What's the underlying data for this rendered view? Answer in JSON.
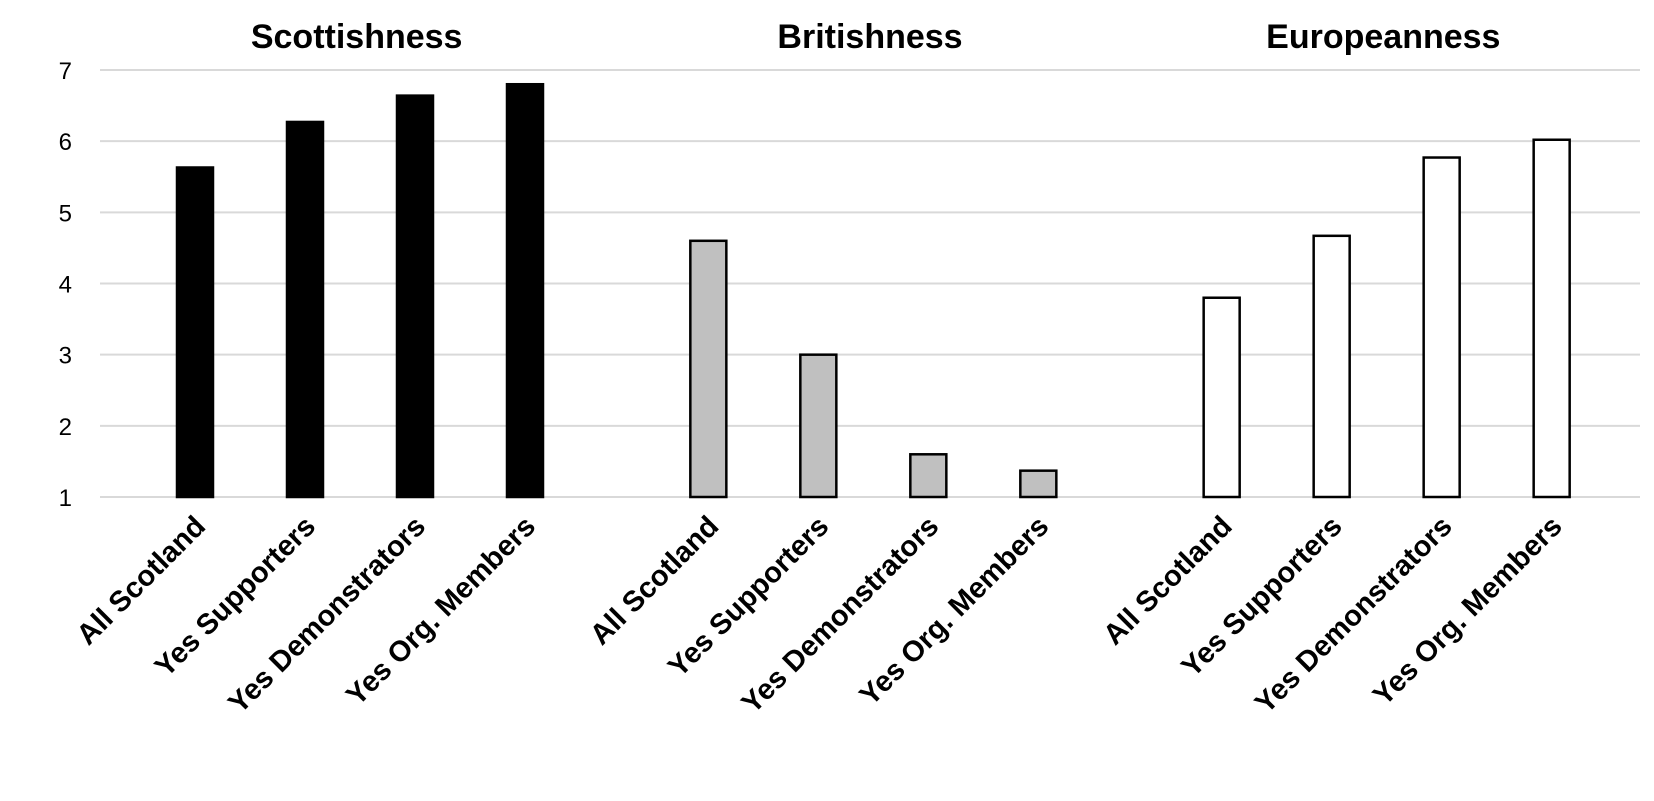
{
  "chart_data": {
    "type": "bar",
    "categories": [
      "All Scotland",
      "Yes Supporters",
      "Yes Demonstrators",
      "Yes Org. Members"
    ],
    "ylim": [
      1,
      7
    ],
    "yticks": [
      1,
      2,
      3,
      4,
      5,
      6,
      7
    ],
    "grid": true,
    "panels": [
      {
        "title": "Scottishness",
        "color": "#000000",
        "values": [
          5.63,
          6.27,
          6.64,
          6.8
        ]
      },
      {
        "title": "Britishness",
        "color": "#c0c0c0",
        "values": [
          4.6,
          3.0,
          1.6,
          1.37
        ]
      },
      {
        "title": "Europeanness",
        "color": "#ffffff",
        "values": [
          3.8,
          4.67,
          5.77,
          6.02
        ]
      }
    ]
  }
}
